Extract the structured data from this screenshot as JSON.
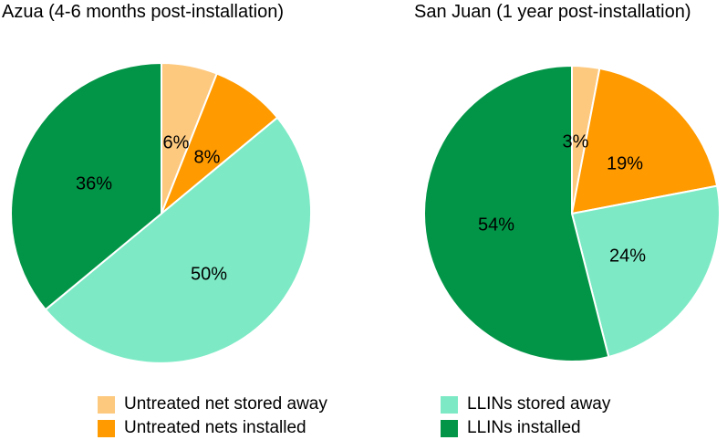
{
  "colors": {
    "untreated_stored": "#FDC97F",
    "untreated_installed": "#FF9A00",
    "llin_stored": "#7DEAC5",
    "llin_installed": "#039547"
  },
  "legend": {
    "items": [
      {
        "label": "Untreated net stored away",
        "color": "#FDC97F"
      },
      {
        "label": "Untreated nets installed",
        "color": "#FF9A00"
      },
      {
        "label": "LLINs stored away",
        "color": "#7DEAC5"
      },
      {
        "label": "LLINs installed",
        "color": "#039547"
      }
    ]
  },
  "chart_data": [
    {
      "type": "pie",
      "title": "Azua (4-6 months post-installation)",
      "categories": [
        "Untreated net stored away",
        "Untreated nets installed",
        "LLINs stored away",
        "LLINs installed"
      ],
      "values": [
        6,
        8,
        50,
        36
      ],
      "labels": [
        "6%",
        "8%",
        "50%",
        "36%"
      ],
      "colors": [
        "#FDC97F",
        "#FF9A00",
        "#7DEAC5",
        "#039547"
      ]
    },
    {
      "type": "pie",
      "title": "San Juan (1 year post-installation)",
      "categories": [
        "Untreated net stored away",
        "Untreated nets installed",
        "LLINs stored away",
        "LLINs installed"
      ],
      "values": [
        3,
        19,
        24,
        54
      ],
      "labels": [
        "3%",
        "19%",
        "24%",
        "54%"
      ],
      "colors": [
        "#FDC97F",
        "#FF9A00",
        "#7DEAC5",
        "#039547"
      ]
    }
  ]
}
